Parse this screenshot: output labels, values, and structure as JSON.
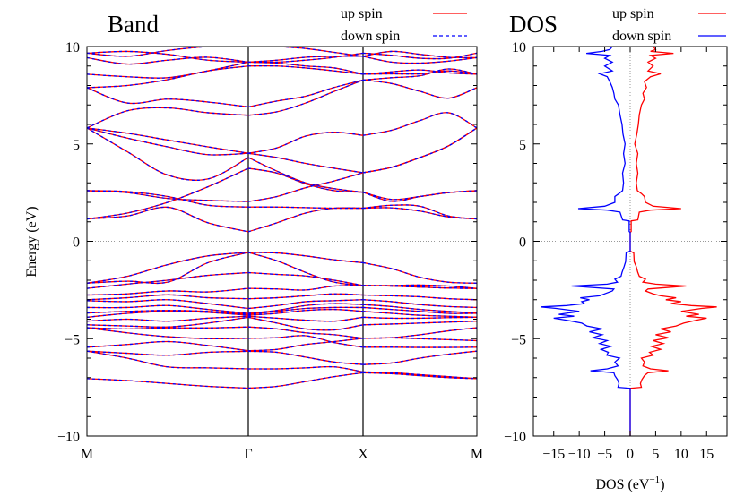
{
  "chart_data": [
    {
      "type": "line",
      "title": "Band",
      "xlabel": "",
      "ylabel": "Energy (eV)",
      "ylim": [
        -10,
        10
      ],
      "yticks": [
        10,
        5,
        0,
        -5,
        -10
      ],
      "ytick_labels": [
        "10",
        "5",
        "0",
        "−5",
        "−10"
      ],
      "kpoint_labels": [
        "M",
        "Γ",
        "X",
        "M"
      ],
      "kpath_positions": [
        0,
        0.25,
        0.5,
        0.75,
        1,
        1.25,
        1.5,
        1.75,
        2,
        2.25,
        2.5,
        2.75,
        3
      ],
      "fermi_level": 0,
      "legend": [
        {
          "label": "up spin",
          "color": "#ff0000",
          "style": "solid"
        },
        {
          "label": "down spin",
          "color": "#0000ff",
          "style": "dashed"
        }
      ],
      "legend_position": "top-right-outside",
      "bands": [
        [
          1.15,
          1.3,
          1.75,
          0.95,
          0.49,
          0.95,
          1.45,
          1.7,
          1.7,
          1.72,
          1.55,
          1.25,
          1.15
        ],
        [
          1.15,
          1.45,
          2.0,
          2.8,
          3.75,
          3.5,
          2.95,
          2.6,
          2.52,
          2.05,
          2.3,
          2.5,
          2.6
        ],
        [
          2.6,
          2.55,
          2.3,
          1.85,
          1.76,
          1.76,
          1.73,
          1.7,
          1.7,
          1.85,
          1.8,
          1.3,
          1.15
        ],
        [
          2.6,
          2.5,
          2.2,
          2.1,
          2.04,
          2.3,
          2.75,
          3.1,
          3.52,
          3.8,
          4.3,
          4.9,
          5.82
        ],
        [
          5.82,
          4.6,
          3.4,
          3.2,
          4.3,
          3.6,
          3.0,
          2.7,
          2.52,
          2.15,
          2.3,
          2.5,
          2.6
        ],
        [
          5.82,
          5.3,
          4.85,
          4.45,
          4.52,
          4.8,
          5.4,
          5.6,
          5.44,
          5.7,
          6.2,
          6.6,
          5.82
        ],
        [
          5.82,
          5.55,
          5.2,
          4.85,
          4.52,
          4.3,
          4.0,
          3.75,
          3.52,
          3.8,
          4.3,
          4.9,
          5.82
        ],
        [
          7.89,
          7.1,
          7.3,
          7.15,
          6.9,
          7.2,
          7.45,
          7.9,
          8.28,
          8.4,
          8.5,
          8.85,
          8.58
        ],
        [
          5.82,
          6.7,
          6.85,
          6.6,
          6.47,
          6.65,
          7.1,
          7.7,
          8.28,
          8.1,
          7.7,
          7.35,
          7.89
        ],
        [
          7.89,
          8.0,
          8.3,
          8.75,
          9.0,
          9.0,
          8.9,
          8.75,
          8.58,
          8.6,
          8.6,
          8.75,
          8.58
        ],
        [
          8.58,
          8.45,
          8.4,
          8.75,
          9.2,
          9.15,
          9.0,
          8.9,
          8.58,
          8.7,
          8.8,
          8.65,
          8.58
        ],
        [
          9.66,
          9.5,
          9.8,
          10.0,
          10.05,
          10.0,
          9.9,
          9.7,
          9.5,
          9.75,
          9.6,
          9.45,
          9.43
        ],
        [
          9.43,
          9.1,
          9.3,
          9.45,
          9.2,
          9.3,
          9.45,
          9.5,
          9.5,
          9.2,
          9.15,
          9.25,
          9.43
        ],
        [
          9.66,
          9.75,
          9.6,
          9.3,
          9.2,
          9.2,
          9.3,
          9.45,
          9.66,
          9.55,
          9.4,
          9.4,
          9.66
        ],
        [
          -2.15,
          -1.8,
          -1.2,
          -0.75,
          -0.57,
          -0.6,
          -0.75,
          -0.95,
          -1.1,
          -1.4,
          -1.85,
          -2.1,
          -2.15
        ],
        [
          -2.15,
          -2.05,
          -2.1,
          -1.1,
          -0.57,
          -1.0,
          -1.6,
          -2.1,
          -2.27,
          -2.27,
          -2.25,
          -2.3,
          -2.42
        ],
        [
          -2.42,
          -2.2,
          -2.0,
          -1.75,
          -1.61,
          -1.7,
          -1.78,
          -2.0,
          -2.27,
          -2.3,
          -2.35,
          -2.4,
          -2.42
        ],
        [
          -2.76,
          -2.7,
          -2.55,
          -2.6,
          -2.42,
          -2.45,
          -2.5,
          -2.3,
          -2.27,
          -2.3,
          -2.35,
          -2.4,
          -2.42
        ],
        [
          -3.0,
          -2.9,
          -2.75,
          -2.9,
          -2.95,
          -2.9,
          -2.8,
          -2.7,
          -2.76,
          -2.8,
          -2.85,
          -2.95,
          -3.0
        ],
        [
          -3.05,
          -3.1,
          -3.0,
          -3.2,
          -3.45,
          -3.3,
          -3.1,
          -3.05,
          -3.0,
          -3.1,
          -3.25,
          -3.35,
          -3.4
        ],
        [
          -3.4,
          -3.4,
          -3.3,
          -3.5,
          -3.7,
          -3.55,
          -3.3,
          -3.2,
          -3.25,
          -3.35,
          -3.5,
          -3.6,
          -3.68
        ],
        [
          -3.68,
          -3.6,
          -3.55,
          -3.6,
          -3.75,
          -3.6,
          -3.45,
          -3.4,
          -3.4,
          -3.5,
          -3.6,
          -3.7,
          -3.7
        ],
        [
          -3.9,
          -3.7,
          -3.6,
          -3.65,
          -3.8,
          -3.7,
          -3.55,
          -3.5,
          -3.6,
          -3.7,
          -3.8,
          -3.85,
          -3.9
        ],
        [
          -4.1,
          -4.0,
          -4.1,
          -3.95,
          -3.85,
          -3.95,
          -4.05,
          -4.1,
          -3.9,
          -3.95,
          -3.95,
          -3.92,
          -3.9
        ],
        [
          -4.29,
          -4.35,
          -4.4,
          -4.2,
          -3.9,
          -4.2,
          -4.5,
          -4.55,
          -4.29,
          -4.25,
          -4.2,
          -4.15,
          -4.1
        ],
        [
          -4.44,
          -4.5,
          -4.45,
          -4.45,
          -4.4,
          -4.5,
          -4.7,
          -4.8,
          -4.98,
          -4.95,
          -4.8,
          -4.6,
          -4.44
        ],
        [
          -4.44,
          -4.7,
          -4.9,
          -5.0,
          -4.98,
          -4.95,
          -4.85,
          -5.2,
          -5.44,
          -5.44,
          -5.45,
          -5.45,
          -5.44
        ],
        [
          -5.44,
          -5.3,
          -5.15,
          -5.35,
          -5.62,
          -5.55,
          -5.3,
          -5.15,
          -4.98,
          -4.96,
          -5.0,
          -5.05,
          -5.1
        ],
        [
          -5.64,
          -5.75,
          -5.85,
          -5.7,
          -5.65,
          -5.7,
          -5.95,
          -6.2,
          -6.33,
          -6.25,
          -6.0,
          -5.8,
          -5.64
        ],
        [
          -5.64,
          -6.0,
          -6.45,
          -6.5,
          -6.55,
          -6.55,
          -6.5,
          -6.45,
          -6.71,
          -6.75,
          -6.85,
          -6.95,
          -7.05
        ],
        [
          -7.05,
          -7.15,
          -7.3,
          -7.45,
          -7.54,
          -7.45,
          -7.2,
          -6.95,
          -6.75,
          -6.8,
          -6.9,
          -7.0,
          -7.05
        ]
      ]
    },
    {
      "type": "line",
      "title": "DOS",
      "xlabel": "DOS (eV⁻¹)",
      "xlabel_main": "DOS (eV",
      "xlabel_sup": "−1",
      "xlabel_close": ")",
      "ylabel": "",
      "xlim": [
        -19,
        19
      ],
      "ylim": [
        -10,
        10
      ],
      "xticks": [
        -15,
        -10,
        -5,
        0,
        5,
        10,
        15
      ],
      "xtick_labels": [
        "−15",
        "−10",
        "−5",
        "0",
        "5",
        "10",
        "15"
      ],
      "yticks": [
        10,
        5,
        0,
        -5,
        -10
      ],
      "ytick_labels": [
        "10",
        "5",
        "0",
        "−5",
        "−10"
      ],
      "legend": [
        {
          "label": "up spin",
          "color": "#ff0000",
          "style": "solid"
        },
        {
          "label": "down spin",
          "color": "#0000ff",
          "style": "solid"
        }
      ],
      "legend_position": "top-right-outside",
      "energy": [
        -10,
        -7.6,
        -7.55,
        -7.5,
        -7.3,
        -7.1,
        -6.9,
        -6.75,
        -6.65,
        -6.55,
        -6.4,
        -6.2,
        -6.0,
        -5.85,
        -5.7,
        -5.55,
        -5.4,
        -5.25,
        -5.1,
        -4.95,
        -4.8,
        -4.65,
        -4.5,
        -4.35,
        -4.2,
        -4.05,
        -3.95,
        -3.85,
        -3.75,
        -3.6,
        -3.45,
        -3.37,
        -3.3,
        -3.2,
        -3.1,
        -3.0,
        -2.9,
        -2.8,
        -2.7,
        -2.55,
        -2.45,
        -2.3,
        -2.2,
        -2.1,
        -1.95,
        -1.8,
        -1.6,
        -1.3,
        -1.05,
        -0.6,
        -0.5,
        0.45,
        0.5,
        1.05,
        1.1,
        1.5,
        1.6,
        1.68,
        1.8,
        2.0,
        2.3,
        2.45,
        2.6,
        3.0,
        3.5,
        4.0,
        4.5,
        5.0,
        5.5,
        6.0,
        6.5,
        7.0,
        7.3,
        7.6,
        7.9,
        8.2,
        8.45,
        8.6,
        8.75,
        9.0,
        9.2,
        9.4,
        9.55,
        9.65,
        9.75,
        9.85,
        10
      ],
      "up": [
        0,
        0,
        0,
        2.2,
        2.0,
        2.3,
        2.8,
        3.5,
        7.5,
        4,
        2.5,
        2.8,
        2.2,
        4.5,
        3.8,
        6,
        4.2,
        6.5,
        4.5,
        7.5,
        5,
        8,
        6,
        9,
        10.5,
        13,
        15,
        11,
        13.5,
        10,
        14,
        17,
        12,
        8,
        10,
        7,
        9,
        6,
        4.5,
        3,
        3.5,
        11,
        5,
        2.5,
        3,
        1.8,
        1.5,
        1.2,
        0.8,
        0.7,
        0,
        0,
        0.2,
        0.2,
        1.5,
        1.8,
        4,
        10,
        4.5,
        3,
        2.8,
        2.2,
        1.4,
        1.2,
        1.5,
        1.2,
        1.5,
        0.9,
        1.3,
        1.6,
        1.8,
        2.2,
        2.8,
        2.5,
        3.2,
        2.8,
        4,
        6,
        3.5,
        4.5,
        3.5,
        5,
        4,
        8.5,
        4,
        5,
        4.5
      ],
      "down": [
        0,
        0,
        0,
        -2.4,
        -2.2,
        -2.5,
        -3,
        -3.2,
        -7.8,
        -4.5,
        -2.4,
        -3,
        -2.1,
        -4.6,
        -4.3,
        -5.7,
        -3.8,
        -6,
        -4.5,
        -7.3,
        -5.5,
        -8,
        -5.5,
        -8.5,
        -9.5,
        -12.5,
        -15,
        -11,
        -14,
        -10,
        -14.5,
        -17.5,
        -12.5,
        -9,
        -9.5,
        -8,
        -9.8,
        -6,
        -5,
        -3.5,
        -3.2,
        -11.5,
        -4.5,
        -2.5,
        -3,
        -1.8,
        -1.6,
        -1.2,
        -0.9,
        -0.8,
        0,
        0,
        -0.2,
        -0.2,
        -1.5,
        -2,
        -4.5,
        -10.2,
        -5,
        -3,
        -3,
        -2.2,
        -1.5,
        -1.3,
        -1.5,
        -1.0,
        -1.3,
        -1.0,
        -1.4,
        -1.6,
        -2.0,
        -2.3,
        -3.0,
        -3.2,
        -3.5,
        -4.0,
        -4.5,
        -6,
        -3.5,
        -5,
        -3.5,
        -5,
        -4,
        -8.6,
        -5.5,
        -4,
        -3.5
      ]
    }
  ]
}
